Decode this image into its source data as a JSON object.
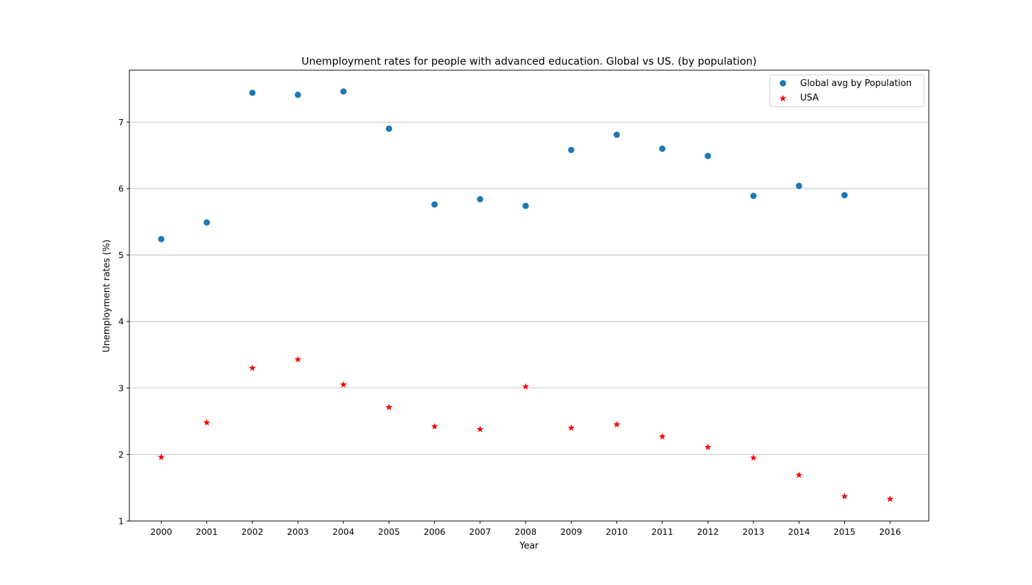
{
  "chart_data": {
    "type": "scatter",
    "title": "Unemployment rates for people with advanced education. Global vs US. (by population)",
    "xlabel": "Year",
    "ylabel": "Unemployment rates (%)",
    "x": [
      2000,
      2001,
      2002,
      2003,
      2004,
      2005,
      2006,
      2007,
      2008,
      2009,
      2010,
      2011,
      2012,
      2013,
      2014,
      2015,
      2016
    ],
    "xlim": [
      1999.3,
      2016.85
    ],
    "ylim": [
      1.0,
      7.78
    ],
    "yticks": [
      1,
      2,
      3,
      4,
      5,
      6,
      7
    ],
    "grid": "horizontal",
    "legend_position": "top-right",
    "series": [
      {
        "name": "Global avg by Population",
        "marker": "circle",
        "color": "#1f77b4",
        "x": [
          2000,
          2001,
          2002,
          2003,
          2004,
          2005,
          2006,
          2007,
          2008,
          2009,
          2010,
          2011,
          2012,
          2013,
          2014,
          2015
        ],
        "values": [
          5.24,
          5.49,
          7.44,
          7.41,
          7.46,
          6.9,
          5.76,
          5.84,
          5.74,
          6.58,
          6.81,
          6.6,
          6.49,
          5.89,
          6.04,
          5.9
        ]
      },
      {
        "name": "USA",
        "marker": "star",
        "color": "#ff0000",
        "x": [
          2000,
          2001,
          2002,
          2003,
          2004,
          2005,
          2006,
          2007,
          2008,
          2009,
          2010,
          2011,
          2012,
          2013,
          2014,
          2015,
          2016
        ],
        "values": [
          1.96,
          2.48,
          3.3,
          3.43,
          3.05,
          2.71,
          2.42,
          2.38,
          3.02,
          2.4,
          2.45,
          2.27,
          2.11,
          1.95,
          1.69,
          1.37,
          1.33
        ]
      }
    ]
  }
}
